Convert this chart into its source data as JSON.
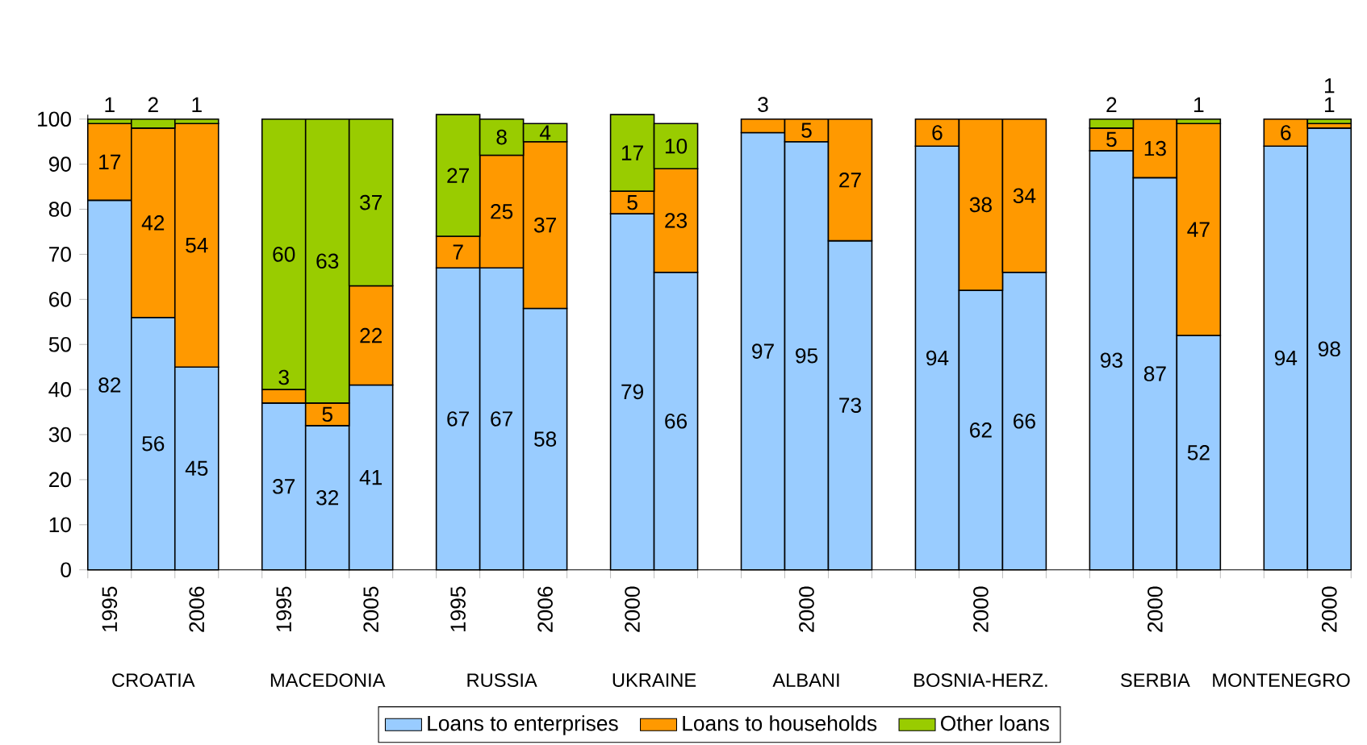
{
  "chart_data": {
    "type": "bar",
    "stacked": true,
    "data_labels": true,
    "legend": "bottom",
    "categories": [
      "1995",
      null,
      "2006",
      null,
      "1995",
      null,
      "2005",
      null,
      "1995",
      null,
      "2006",
      null,
      "2000",
      null,
      null,
      null,
      "2000",
      null,
      null,
      null,
      "2000",
      null,
      null,
      null,
      "2000",
      null,
      null,
      null,
      "2000"
    ],
    "series": [
      {
        "name": "Loans to enterprises",
        "color": "#99ccff",
        "values": [
          82,
          56,
          45,
          null,
          37,
          32,
          41,
          null,
          67,
          67,
          58,
          null,
          79,
          66,
          null,
          97,
          95,
          73,
          null,
          94,
          62,
          66,
          null,
          93,
          87,
          52,
          null,
          94,
          98
        ]
      },
      {
        "name": "Loans to households",
        "color": "#ff9900",
        "values": [
          17,
          42,
          54,
          null,
          3,
          5,
          22,
          null,
          7,
          25,
          37,
          null,
          5,
          23,
          null,
          3,
          5,
          27,
          null,
          6,
          38,
          34,
          null,
          5,
          13,
          47,
          null,
          6,
          1
        ]
      },
      {
        "name": "Other loans",
        "color": "#99cc00",
        "values": [
          1,
          2,
          1,
          null,
          60,
          63,
          37,
          null,
          27,
          8,
          4,
          null,
          17,
          10,
          null,
          null,
          null,
          null,
          null,
          null,
          null,
          null,
          null,
          2,
          null,
          1,
          null,
          null,
          1
        ]
      }
    ],
    "ylim": [
      0,
      101
    ],
    "yticks": [
      0,
      10,
      20,
      30,
      40,
      50,
      60,
      70,
      80,
      90,
      100
    ],
    "annotations": [
      "CROATIA",
      "MACEDONIA",
      "RUSSIA",
      "UKRAINE",
      "ALBANI",
      "BOSNIA-HERZ.",
      "SERBIA",
      "MONTENEGRO"
    ]
  }
}
